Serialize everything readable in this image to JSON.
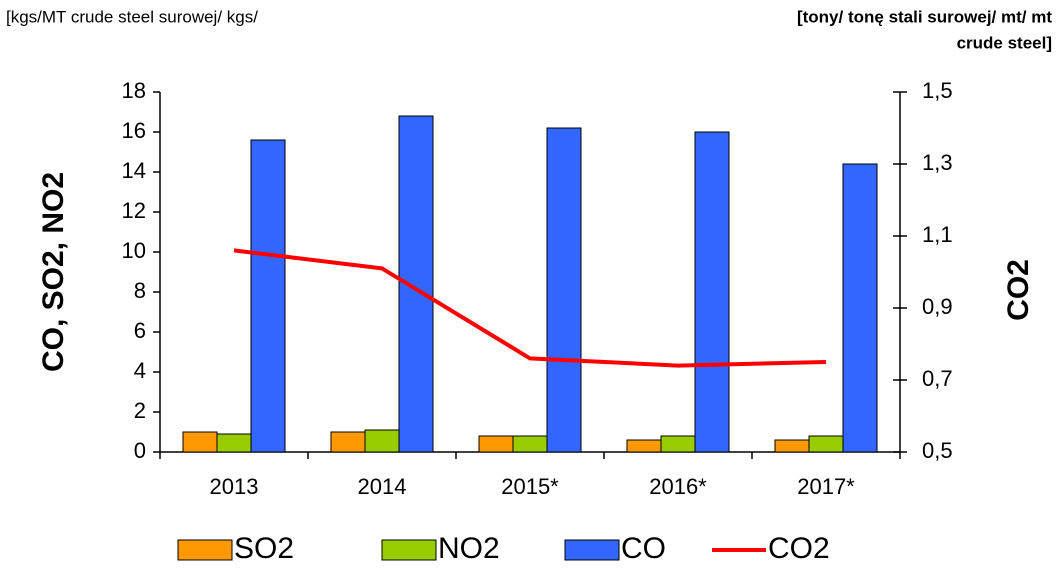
{
  "chart_data": {
    "type": "bar",
    "y_unit_label": "[kgs/MT crude steel surowej/ kgs/",
    "y2_unit_label": [
      "[tony/ tonę stali surowej/ mt/ mt",
      "crude steel]"
    ],
    "y_label": "CO, SO2, NO2",
    "y2_label": "CO2",
    "categories": [
      "2013",
      "2014",
      "2015*",
      "2016*",
      "2017*"
    ],
    "series": [
      {
        "name": "SO2",
        "type": "bar",
        "color": "#ff9900",
        "values": [
          1.0,
          1.0,
          0.8,
          0.6,
          0.6
        ]
      },
      {
        "name": "NO2",
        "type": "bar",
        "color": "#99cc00",
        "values": [
          0.9,
          1.1,
          0.8,
          0.8,
          0.8
        ]
      },
      {
        "name": "CO",
        "type": "bar",
        "color": "#3366ff",
        "values": [
          15.6,
          16.8,
          16.2,
          16.0,
          14.4
        ]
      },
      {
        "name": "CO2",
        "type": "line",
        "axis": "y2",
        "color": "#ff0000",
        "values": [
          1.06,
          1.01,
          0.76,
          0.74,
          0.75
        ]
      }
    ],
    "ylim": [
      0,
      18
    ],
    "yticks": [
      0,
      2,
      4,
      6,
      8,
      10,
      12,
      14,
      16,
      18
    ],
    "y2lim": [
      0.5,
      1.5
    ],
    "y2ticks": [
      {
        "value": 0.5,
        "label": "0,5"
      },
      {
        "value": 0.7,
        "label": "0,7"
      },
      {
        "value": 0.9,
        "label": "0,9"
      },
      {
        "value": 1.1,
        "label": "1,1"
      },
      {
        "value": 1.3,
        "label": "1,3"
      },
      {
        "value": 1.5,
        "label": "1,5"
      }
    ],
    "grid": false,
    "legend": "bottom"
  }
}
